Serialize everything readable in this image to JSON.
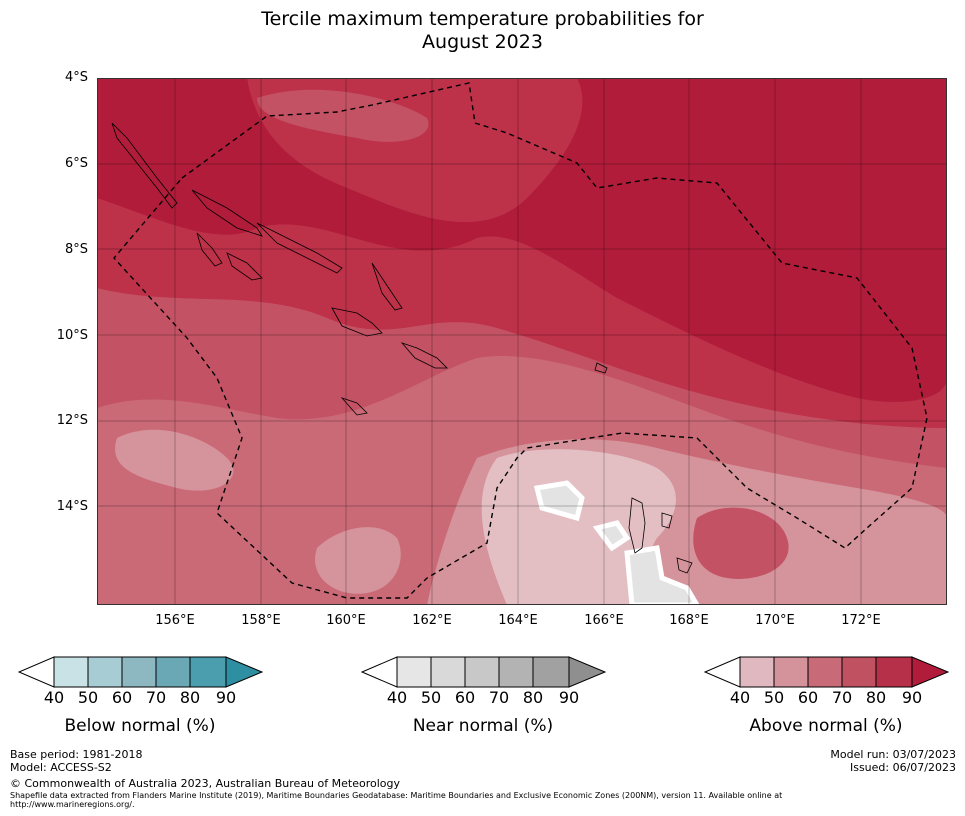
{
  "title_line1": "Tercile maximum temperature probabilities for",
  "title_line2": "August 2023",
  "lat_labels": [
    "4°S",
    "6°S",
    "8°S",
    "10°S",
    "12°S",
    "14°S"
  ],
  "lon_labels": [
    "156°E",
    "158°E",
    "160°E",
    "162°E",
    "164°E",
    "166°E",
    "168°E",
    "170°E",
    "172°E"
  ],
  "legends": [
    {
      "label": "Below normal (%)",
      "ticks": [
        "40",
        "50",
        "60",
        "70",
        "80",
        "90"
      ],
      "colors": [
        "#ffffff",
        "#c9e2e6",
        "#a8ccd3",
        "#8db8c2",
        "#6aa8b6",
        "#4a9eae",
        "#2e8fa3"
      ]
    },
    {
      "label": "Near normal (%)",
      "ticks": [
        "40",
        "50",
        "60",
        "70",
        "80",
        "90"
      ],
      "colors": [
        "#ffffff",
        "#e6e6e6",
        "#d9d9d9",
        "#c8c8c8",
        "#b3b3b3",
        "#a1a1a1",
        "#8f8f8f"
      ]
    },
    {
      "label": "Above normal (%)",
      "ticks": [
        "40",
        "50",
        "60",
        "70",
        "80",
        "90"
      ],
      "colors": [
        "#ffffff",
        "#e0b9c0",
        "#d4929b",
        "#c96a78",
        "#bf5161",
        "#b73049",
        "#b01c3a"
      ]
    }
  ],
  "footer": {
    "base_period": "Base period: 1981-2018",
    "model": "Model: ACCESS-S2",
    "model_run": "Model run: 03/07/2023",
    "issued": "Issued: 06/07/2023",
    "copyright": "© Commonwealth of Australia 2023, Australian Bureau of Meteorology",
    "shapefile_line1": "Shapefile data extracted from Flanders Marine Institute (2019), Maritime Boundaries Geodatabase: Maritime Boundaries and Exclusive Economic Zones (200NM), version 11. Available online at",
    "shapefile_line2": "http://www.marineregions.org/."
  },
  "colors": {
    "above_90": "#b01c3a",
    "above_80": "#bd3149",
    "above_70": "#c35264",
    "above_60": "#ca6a77",
    "above_50": "#d5939b",
    "above_40": "#e3bfc4",
    "near_50": "#e3e3e3"
  }
}
